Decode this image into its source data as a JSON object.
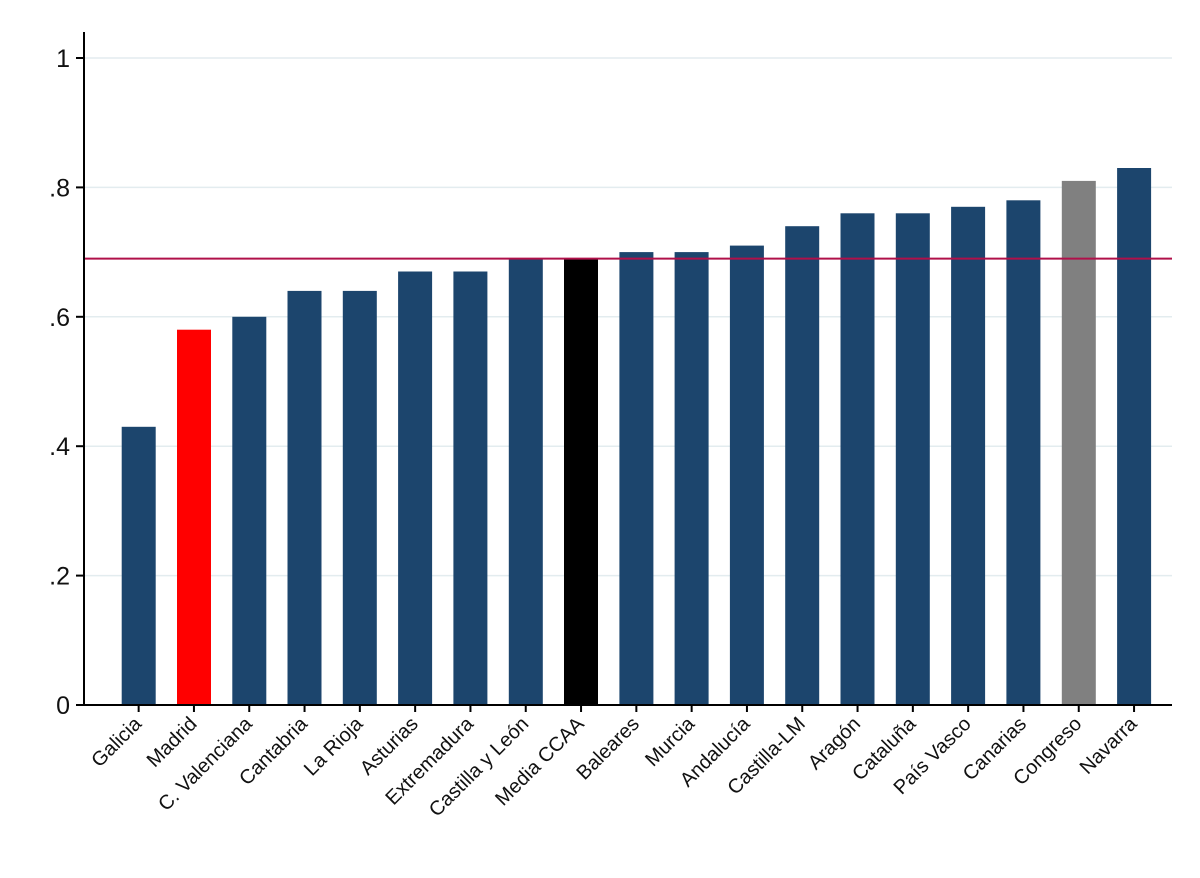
{
  "chart_data": {
    "type": "bar",
    "categories": [
      "Galicia",
      "Madrid",
      "C. Valenciana",
      "Cantabria",
      "La Rioja",
      "Asturias",
      "Extremadura",
      "Castilla y León",
      "Media CCAA",
      "Baleares",
      "Murcia",
      "Andalucía",
      "Castilla-LM",
      "Aragón",
      "Cataluña",
      "País Vasco",
      "Canarias",
      "Congreso",
      "Navarra"
    ],
    "values": [
      0.43,
      0.58,
      0.6,
      0.64,
      0.64,
      0.67,
      0.67,
      0.69,
      0.69,
      0.7,
      0.7,
      0.71,
      0.74,
      0.76,
      0.76,
      0.77,
      0.78,
      0.81,
      0.83
    ],
    "bar_colors": [
      "#1c456d",
      "#ff0000",
      "#1c456d",
      "#1c456d",
      "#1c456d",
      "#1c456d",
      "#1c456d",
      "#1c456d",
      "#000000",
      "#1c456d",
      "#1c456d",
      "#1c456d",
      "#1c456d",
      "#1c456d",
      "#1c456d",
      "#1c456d",
      "#1c456d",
      "#808080",
      "#1c456d"
    ],
    "ylim": [
      0,
      1.05
    ],
    "yticks": [
      0,
      0.2,
      0.4,
      0.6,
      0.8,
      1
    ],
    "ytick_labels": [
      "0",
      ".2",
      ".4",
      ".6",
      ".8",
      "1"
    ],
    "reference_line": {
      "value": 0.69,
      "color": "#b0104a"
    },
    "grid": "horizontal",
    "title": "",
    "xlabel": "",
    "ylabel": ""
  }
}
